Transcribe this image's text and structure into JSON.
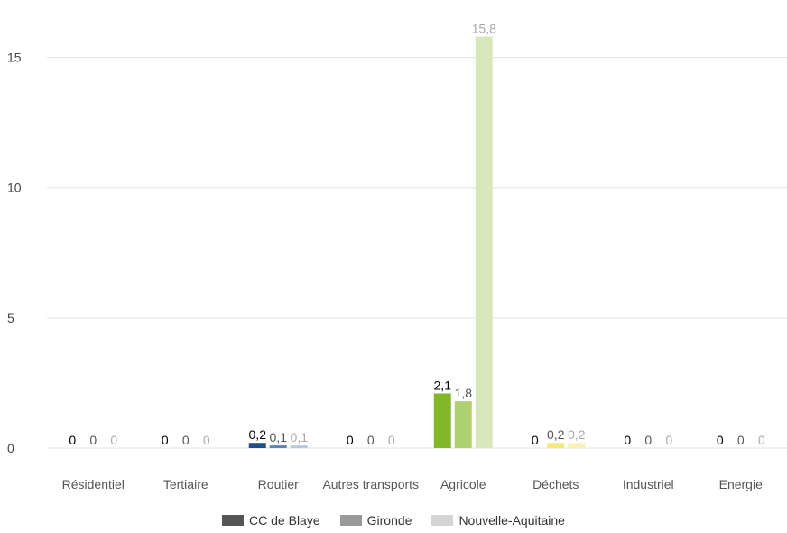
{
  "chart_data": {
    "type": "bar",
    "categories": [
      "Résidentiel",
      "Tertiaire",
      "Routier",
      "Autres transports",
      "Agricole",
      "Déchets",
      "Industriel",
      "Energie"
    ],
    "series": [
      {
        "name": "CC de Blaye",
        "values": [
          0,
          0,
          0.2,
          0,
          2.1,
          0,
          0,
          0
        ],
        "labels": [
          "0",
          "0",
          "0,2",
          "0",
          "2,1",
          "0",
          "0",
          "0"
        ]
      },
      {
        "name": "Gironde",
        "values": [
          0,
          0,
          0.1,
          0,
          1.8,
          0.2,
          0,
          0
        ],
        "labels": [
          "0",
          "0",
          "0,1",
          "0",
          "1,8",
          "0,2",
          "0",
          "0"
        ]
      },
      {
        "name": "Nouvelle-Aquitaine",
        "values": [
          0,
          0,
          0.1,
          0,
          15.8,
          0.2,
          0,
          0
        ],
        "labels": [
          "0",
          "0",
          "0,1",
          "0",
          "15,8",
          "0,2",
          "0",
          "0"
        ]
      }
    ],
    "bar_colors": {
      "Routier": [
        "#1f4e8c",
        "#5b82b5",
        "#b8c9e0"
      ],
      "Agricole": [
        "#83b72a",
        "#aed170",
        "#d8e8bd"
      ],
      "Déchets": [
        "#f2df3c",
        "#f6e978",
        "#faf1bd"
      ],
      "Industriel": [
        "#f2a86b",
        "#f6c49a",
        "#fadcc2"
      ]
    },
    "label_colors": [
      "#000000",
      "#555555",
      "#aaaaaa"
    ],
    "yticks": [
      "0",
      "5",
      "10",
      "15"
    ],
    "ytick_values": [
      0,
      5,
      10,
      15
    ],
    "ylim": [
      0,
      16.2
    ],
    "grid": true,
    "legend_position": "bottom",
    "legend_colors": [
      "#555555",
      "#999999",
      "#d4d4d4"
    ]
  }
}
